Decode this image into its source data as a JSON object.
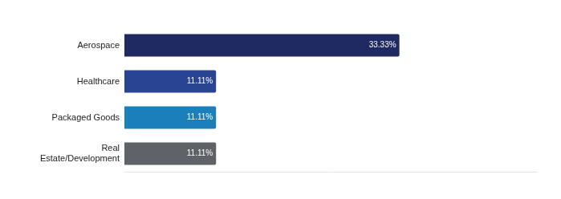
{
  "chart_data": {
    "type": "bar",
    "orientation": "horizontal",
    "categories": [
      "Aerospace",
      "Healthcare",
      "Packaged Goods",
      "Real Estate/Development"
    ],
    "values": [
      33.33,
      11.11,
      11.11,
      11.11
    ],
    "value_labels": [
      "33.33%",
      "11.11%",
      "11.11%",
      "11.11%"
    ],
    "colors": [
      "#1f2a63",
      "#2a4494",
      "#1a7fba",
      "#5f6266"
    ],
    "xlim": [
      0,
      50
    ],
    "grid": false,
    "data_labels": true,
    "tick_labels": "y"
  }
}
